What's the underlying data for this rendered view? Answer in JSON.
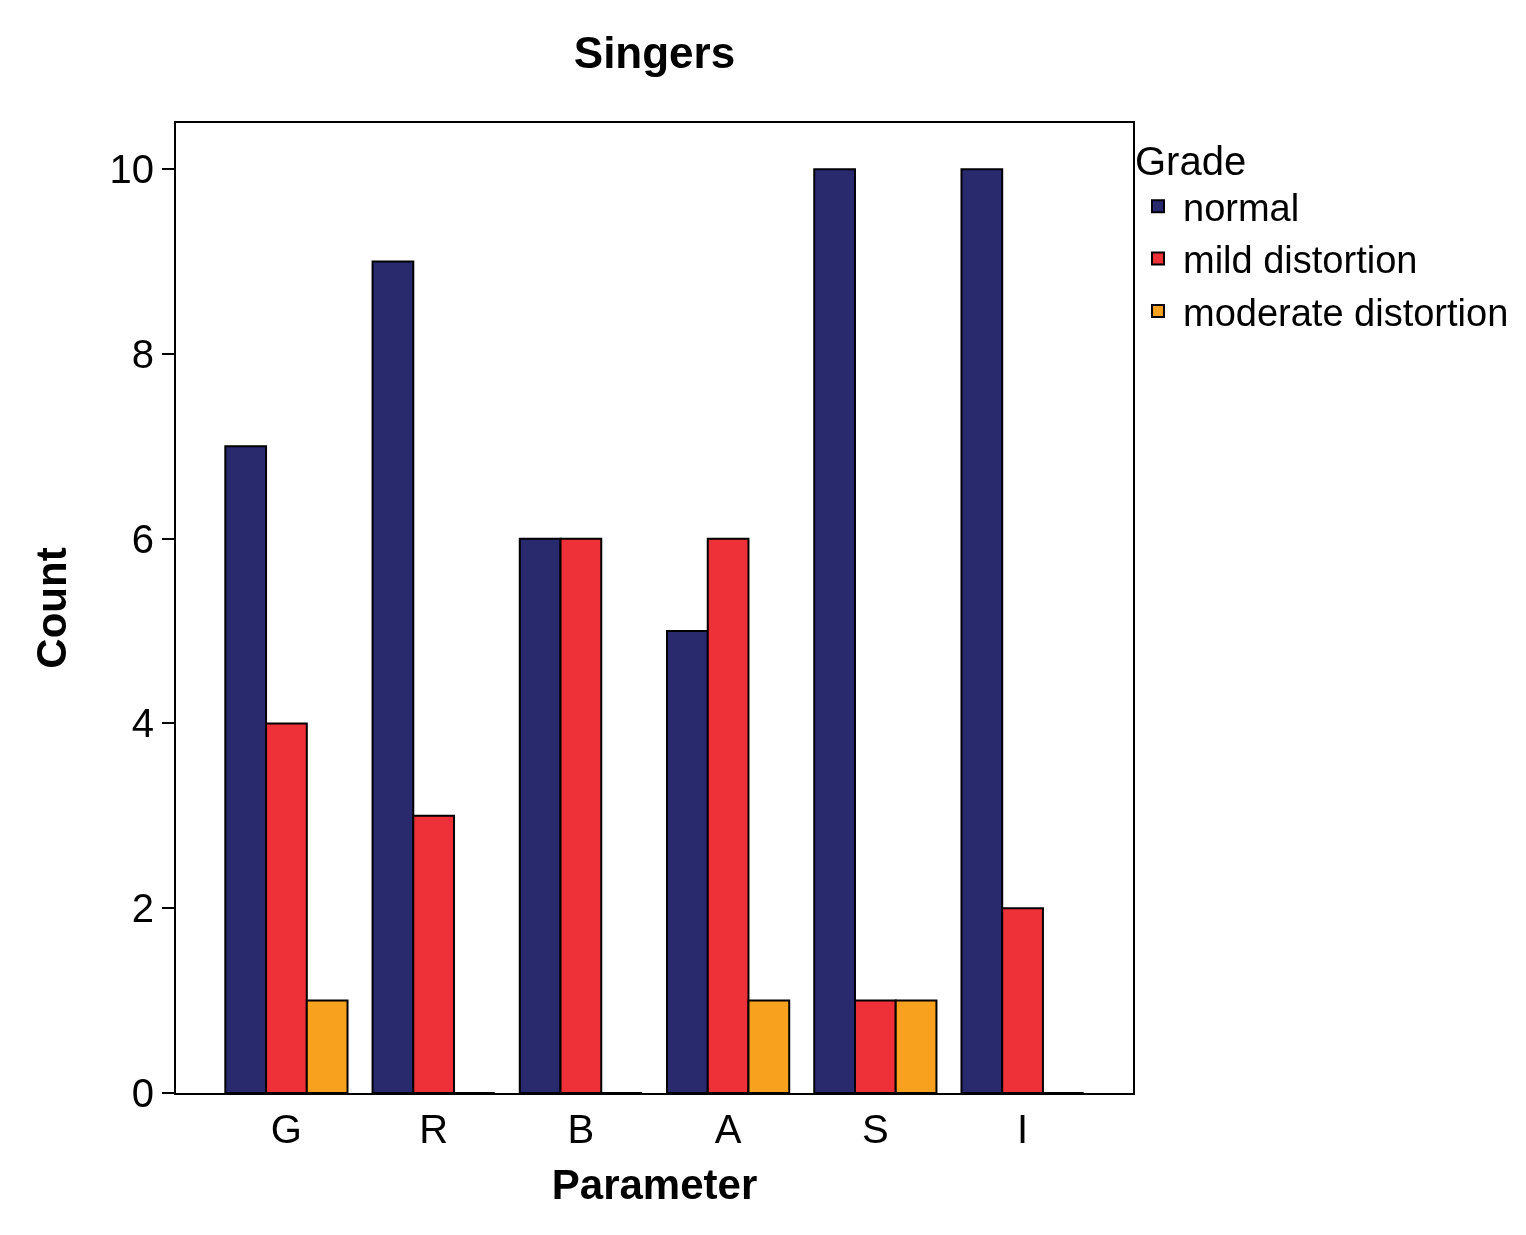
{
  "chart_data": {
    "type": "bar",
    "title": "Singers",
    "xlabel": "Parameter",
    "ylabel": "Count",
    "legend_title": "Grade",
    "categories": [
      "G",
      "R",
      "B",
      "A",
      "S",
      "I"
    ],
    "series": [
      {
        "name": "normal",
        "color": "#29296e",
        "values": [
          7,
          9,
          6,
          5,
          10,
          10
        ]
      },
      {
        "name": "mild distortion",
        "color": "#ee3038",
        "values": [
          4,
          3,
          6,
          6,
          1,
          2
        ]
      },
      {
        "name": "moderate distortion",
        "color": "#f7a11f",
        "values": [
          1,
          0,
          0,
          1,
          1,
          0
        ]
      }
    ],
    "ylim": [
      0,
      10.5
    ],
    "yticks": [
      0,
      2,
      4,
      6,
      8,
      10
    ],
    "grid": false,
    "legend": "top right"
  }
}
